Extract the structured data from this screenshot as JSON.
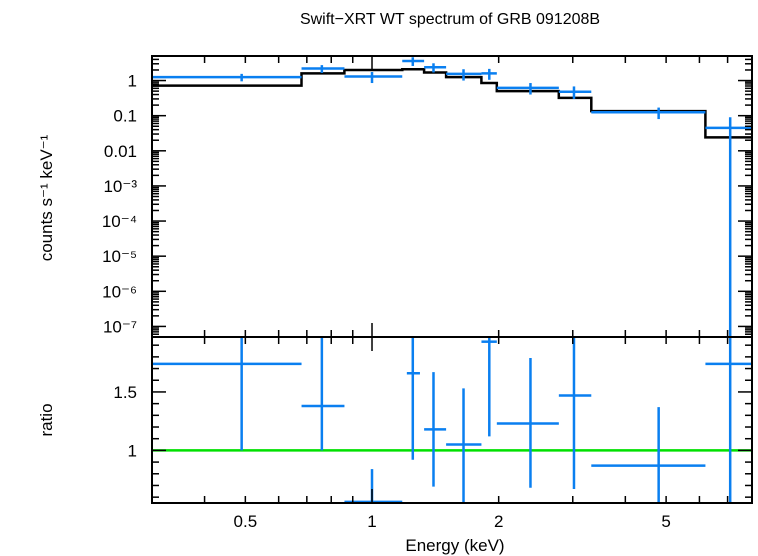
{
  "chart_data": {
    "type": "scatter",
    "title": "Swift−XRT WT spectrum of GRB 091208B",
    "xlabel": "Energy (keV)",
    "x_scale": "log",
    "xlim": [
      0.3,
      8.0
    ],
    "x_ticks": [
      {
        "value": 0.5,
        "label": "0.5"
      },
      {
        "value": 1,
        "label": "1"
      },
      {
        "value": 2,
        "label": "2"
      },
      {
        "value": 5,
        "label": "5"
      }
    ],
    "top_panel": {
      "ylabel": "counts s⁻¹ keV⁻¹",
      "y_scale": "log",
      "ylim": [
        5e-08,
        5.0
      ],
      "y_ticks": [
        {
          "value": 1,
          "label": "1"
        },
        {
          "value": 0.1,
          "label": "0.1"
        },
        {
          "value": 0.01,
          "label": "0.01"
        },
        {
          "value": 0.001,
          "label": "10⁻³"
        },
        {
          "value": 0.0001,
          "label": "10⁻⁴"
        },
        {
          "value": 1e-05,
          "label": "10⁻⁵"
        },
        {
          "value": 1e-06,
          "label": "10⁻⁶"
        },
        {
          "value": 1e-07,
          "label": "10⁻⁷"
        }
      ],
      "data": [
        {
          "x": 0.49,
          "xlo": 0.3,
          "xhi": 0.68,
          "y": 1.25,
          "ylo": 0.95,
          "yhi": 1.55
        },
        {
          "x": 0.76,
          "xlo": 0.68,
          "xhi": 0.86,
          "y": 2.2,
          "ylo": 1.65,
          "yhi": 2.75
        },
        {
          "x": 1.0,
          "xlo": 0.86,
          "xhi": 1.18,
          "y": 1.3,
          "ylo": 0.85,
          "yhi": 1.75
        },
        {
          "x": 1.25,
          "xlo": 1.18,
          "xhi": 1.33,
          "y": 3.6,
          "ylo": 2.6,
          "yhi": 4.6
        },
        {
          "x": 1.4,
          "xlo": 1.33,
          "xhi": 1.5,
          "y": 2.4,
          "ylo": 1.7,
          "yhi": 3.1
        },
        {
          "x": 1.65,
          "xlo": 1.5,
          "xhi": 1.82,
          "y": 1.55,
          "ylo": 1.0,
          "yhi": 2.1
        },
        {
          "x": 1.9,
          "xlo": 1.82,
          "xhi": 1.98,
          "y": 1.6,
          "ylo": 1.05,
          "yhi": 2.15
        },
        {
          "x": 2.38,
          "xlo": 1.98,
          "xhi": 2.78,
          "y": 0.62,
          "ylo": 0.4,
          "yhi": 0.85
        },
        {
          "x": 3.02,
          "xlo": 2.78,
          "xhi": 3.32,
          "y": 0.48,
          "ylo": 0.3,
          "yhi": 0.68
        },
        {
          "x": 4.8,
          "xlo": 3.32,
          "xhi": 6.2,
          "y": 0.125,
          "ylo": 0.08,
          "yhi": 0.17
        },
        {
          "x": 7.1,
          "xlo": 6.2,
          "xhi": 8.0,
          "y": 0.045,
          "ylo": 5e-08,
          "yhi": 0.09
        }
      ],
      "model_steps": [
        {
          "xlo": 0.3,
          "xhi": 0.68,
          "y": 0.72
        },
        {
          "xlo": 0.68,
          "xhi": 0.86,
          "y": 1.6
        },
        {
          "xlo": 0.86,
          "xhi": 1.18,
          "y": 2.0
        },
        {
          "xlo": 1.18,
          "xhi": 1.33,
          "y": 2.1
        },
        {
          "xlo": 1.33,
          "xhi": 1.5,
          "y": 1.7
        },
        {
          "xlo": 1.5,
          "xhi": 1.82,
          "y": 1.25
        },
        {
          "xlo": 1.82,
          "xhi": 1.98,
          "y": 0.85
        },
        {
          "xlo": 1.98,
          "xhi": 2.78,
          "y": 0.5
        },
        {
          "xlo": 2.78,
          "xhi": 3.32,
          "y": 0.32
        },
        {
          "xlo": 3.32,
          "xhi": 6.2,
          "y": 0.135
        },
        {
          "xlo": 6.2,
          "xhi": 8.0,
          "y": 0.024
        }
      ]
    },
    "bottom_panel": {
      "ylabel": "ratio",
      "y_scale": "linear",
      "ylim": [
        0.55,
        1.97
      ],
      "y_ticks": [
        {
          "value": 1,
          "label": "1"
        },
        {
          "value": 1.5,
          "label": "1.5"
        }
      ],
      "reference_line": 1.0,
      "data": [
        {
          "x": 0.49,
          "xlo": 0.3,
          "xhi": 0.68,
          "y": 1.74,
          "ylo": 1.0,
          "yhi": 1.97
        },
        {
          "x": 0.76,
          "xlo": 0.68,
          "xhi": 0.86,
          "y": 1.38,
          "ylo": 1.0,
          "yhi": 1.97
        },
        {
          "x": 1.0,
          "xlo": 0.86,
          "xhi": 1.18,
          "y": 0.56,
          "ylo": 0.55,
          "yhi": 0.84
        },
        {
          "x": 1.25,
          "xlo": 1.21,
          "xhi": 1.3,
          "y": 1.66,
          "ylo": 0.92,
          "yhi": 1.97
        },
        {
          "x": 1.4,
          "xlo": 1.33,
          "xhi": 1.5,
          "y": 1.18,
          "ylo": 0.69,
          "yhi": 1.67
        },
        {
          "x": 1.65,
          "xlo": 1.5,
          "xhi": 1.82,
          "y": 1.05,
          "ylo": 0.55,
          "yhi": 1.53
        },
        {
          "x": 1.9,
          "xlo": 1.82,
          "xhi": 1.98,
          "y": 1.93,
          "ylo": 1.12,
          "yhi": 1.97
        },
        {
          "x": 2.38,
          "xlo": 1.98,
          "xhi": 2.78,
          "y": 1.23,
          "ylo": 0.68,
          "yhi": 1.79
        },
        {
          "x": 3.02,
          "xlo": 2.78,
          "xhi": 3.32,
          "y": 1.47,
          "ylo": 0.67,
          "yhi": 1.97
        },
        {
          "x": 4.8,
          "xlo": 3.32,
          "xhi": 6.2,
          "y": 0.87,
          "ylo": 0.55,
          "yhi": 1.37
        },
        {
          "x": 7.1,
          "xlo": 6.2,
          "xhi": 8.0,
          "y": 1.74,
          "ylo": 0.55,
          "yhi": 1.97
        }
      ]
    },
    "colors": {
      "data": "#0a7ff0",
      "model": "#000000",
      "reference": "#00e000",
      "axes": "#000000"
    }
  }
}
